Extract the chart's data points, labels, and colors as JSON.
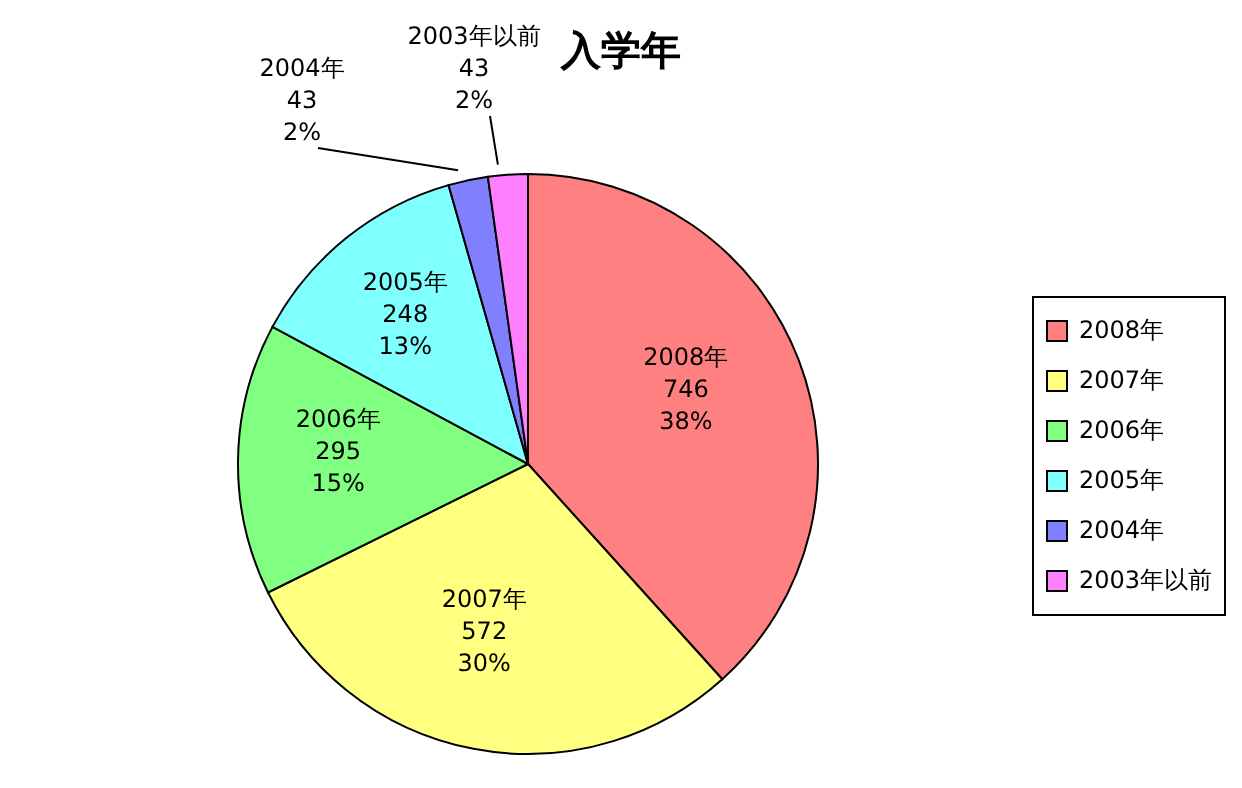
{
  "chart_data": {
    "type": "pie",
    "title": "入学年",
    "categories": [
      "2008年",
      "2007年",
      "2006年",
      "2005年",
      "2004年",
      "2003年以前"
    ],
    "values": [
      746,
      572,
      295,
      248,
      43,
      43
    ],
    "value_labels": [
      "746\n38%",
      "572\n30%",
      "295\n15%",
      "248\n13%",
      "43\n2%",
      "43\n2%"
    ],
    "colors": [
      "#ff8080",
      "#ffff80",
      "#80ff80",
      "#80ffff",
      "#8080ff",
      "#ff80ff"
    ],
    "legend": "right"
  }
}
